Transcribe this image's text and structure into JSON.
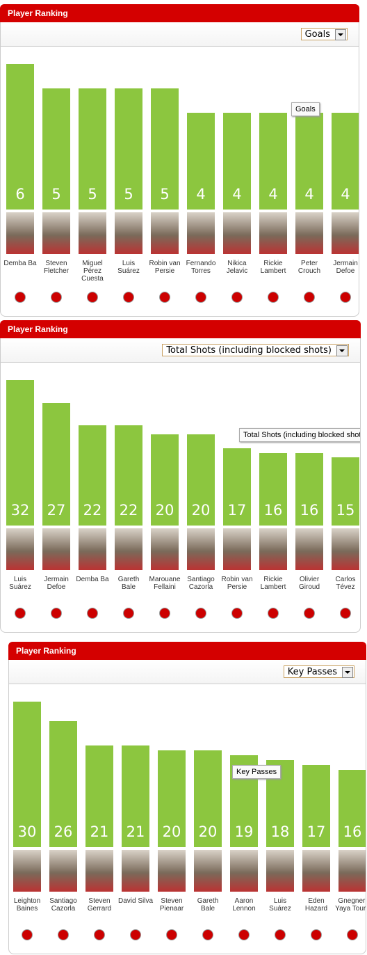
{
  "chart_data": [
    {
      "type": "bar",
      "title": "Player Ranking",
      "selector": "Goals",
      "tooltip": "Goals",
      "color": "#8cc63f",
      "categories": [
        "Demba Ba",
        "Steven Fletcher",
        "Miguel Pérez Cuesta",
        "Luis Suárez",
        "Robin van Persie",
        "Fernando Torres",
        "Nikica Jelavic",
        "Rickie Lambert",
        "Peter Crouch",
        "Jermain Defoe"
      ],
      "values": [
        6,
        5,
        5,
        5,
        5,
        4,
        4,
        4,
        4,
        4
      ]
    },
    {
      "type": "bar",
      "title": "Player Ranking",
      "selector": "Total Shots (including blocked shots)",
      "tooltip": "Total Shots (including blocked shots)",
      "color": "#8cc63f",
      "categories": [
        "Luis Suárez",
        "Jermain Defoe",
        "Demba Ba",
        "Gareth Bale",
        "Marouane Fellaini",
        "Santiago Cazorla",
        "Robin van Persie",
        "Rickie Lambert",
        "Olivier Giroud",
        "Carlos Tévez"
      ],
      "values": [
        32,
        27,
        22,
        22,
        20,
        20,
        17,
        16,
        16,
        15
      ]
    },
    {
      "type": "bar",
      "title": "Player Ranking",
      "selector": "Key Passes",
      "tooltip": "Key Passes",
      "color": "#8cc63f",
      "categories": [
        "Leighton Baines",
        "Santiago Cazorla",
        "Steven Gerrard",
        "David Silva",
        "Steven Pienaar",
        "Gareth Bale",
        "Aaron Lennon",
        "Luis Suárez",
        "Eden Hazard",
        "Gnegneri Yaya Touré"
      ],
      "values": [
        30,
        26,
        21,
        21,
        20,
        20,
        19,
        18,
        17,
        16
      ]
    }
  ]
}
